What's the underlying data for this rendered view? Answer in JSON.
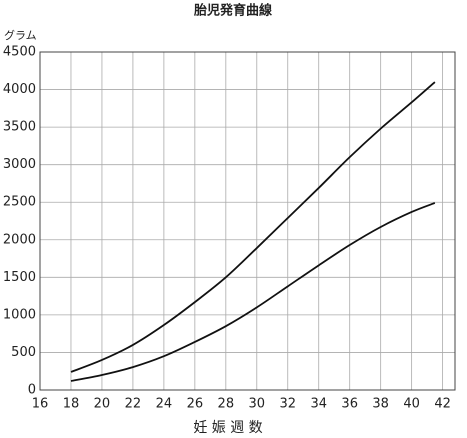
{
  "chart_data": {
    "type": "line",
    "title": "胎児発育曲線",
    "ylabel": "グラム",
    "xlabel": "妊 娠 週 数",
    "x": [
      18,
      20,
      22,
      24,
      26,
      28,
      30,
      32,
      34,
      36,
      38,
      40,
      41.5
    ],
    "series": [
      {
        "color": "#111111",
        "values": [
          240,
          400,
          600,
          865,
          1170,
          1500,
          1890,
          2290,
          2690,
          3100,
          3480,
          3830,
          4100
        ]
      },
      {
        "color": "#111111",
        "values": [
          120,
          200,
          305,
          450,
          640,
          850,
          1100,
          1380,
          1660,
          1930,
          2170,
          2370,
          2490
        ]
      }
    ],
    "xlim": [
      16,
      42.8
    ],
    "xticks": [
      16,
      18,
      20,
      22,
      24,
      26,
      28,
      30,
      32,
      34,
      36,
      38,
      40,
      42
    ],
    "ylim": [
      0,
      4500
    ],
    "yticks": [
      0,
      500,
      1000,
      1500,
      2000,
      2500,
      3000,
      3500,
      4000,
      4500
    ],
    "grid": true
  }
}
